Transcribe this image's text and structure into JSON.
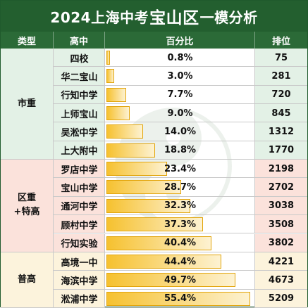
{
  "title": {
    "pre": "2024上海中考",
    "big": "宝山区",
    "post": "一模分析"
  },
  "headers": {
    "type": "类型",
    "school": "高中",
    "percent": "百分比",
    "rank": "排位"
  },
  "types": [
    {
      "label1": "市重",
      "label2": "",
      "bg": "#e3f1e6",
      "start": 0,
      "count": 6
    },
    {
      "label1": "区重",
      "label2": "+特高",
      "bg": "#fbe2db",
      "start": 6,
      "count": 5
    },
    {
      "label1": "普高",
      "label2": "",
      "bg": "#fcf3dc",
      "start": 11,
      "count": 3
    }
  ],
  "rows": [
    {
      "school": "四校",
      "percent_label": "0.8%",
      "percent": 0.8,
      "rank": "75"
    },
    {
      "school": "华二宝山",
      "percent_label": "3.0%",
      "percent": 3.0,
      "rank": "281"
    },
    {
      "school": "行知中学",
      "percent_label": "7.7%",
      "percent": 7.7,
      "rank": "720"
    },
    {
      "school": "上师宝山",
      "percent_label": "9.0%",
      "percent": 9.0,
      "rank": "845"
    },
    {
      "school": "吴淞中学",
      "percent_label": "14.0%",
      "percent": 14.0,
      "rank": "1312"
    },
    {
      "school": "上大附中",
      "percent_label": "18.8%",
      "percent": 18.8,
      "rank": "1770"
    },
    {
      "school": "罗店中学",
      "percent_label": "23.4%",
      "percent": 23.4,
      "rank": "2198"
    },
    {
      "school": "宝山中学",
      "percent_label": "28.7%",
      "percent": 28.7,
      "rank": "2702"
    },
    {
      "school": "通河中学",
      "percent_label": "32.3%",
      "percent": 32.3,
      "rank": "3038"
    },
    {
      "school": "顾村中学",
      "percent_label": "37.3%",
      "percent": 37.3,
      "rank": "3508"
    },
    {
      "school": "行知实验",
      "percent_label": "40.4%",
      "percent": 40.4,
      "rank": "3802"
    },
    {
      "school": "高境一中",
      "percent_label": "44.4%",
      "percent": 44.4,
      "rank": "4221"
    },
    {
      "school": "海滨中学",
      "percent_label": "49.7%",
      "percent": 49.7,
      "rank": "4673"
    },
    {
      "school": "淞浦中学",
      "percent_label": "55.4%",
      "percent": 55.4,
      "rank": "5209"
    }
  ],
  "colors": {
    "header_green": "#235f2f",
    "bar_gold": "#f6c12f"
  }
}
